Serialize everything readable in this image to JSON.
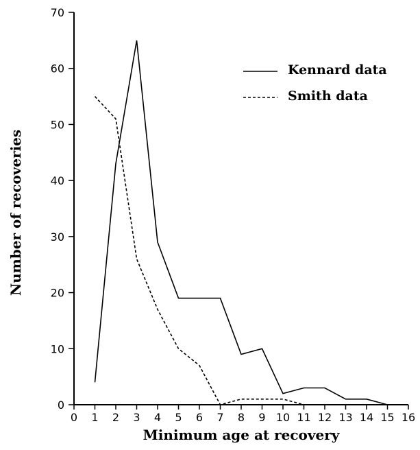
{
  "chart_data": {
    "type": "line",
    "title": "",
    "xlabel": "Minimum age at recovery",
    "ylabel": "Number of recoveries",
    "xlim": [
      0,
      16
    ],
    "ylim": [
      0,
      70
    ],
    "xticks": [
      0,
      1,
      2,
      3,
      4,
      5,
      6,
      7,
      8,
      9,
      10,
      11,
      12,
      13,
      14,
      15,
      16
    ],
    "yticks": [
      0,
      10,
      20,
      30,
      40,
      50,
      60,
      70
    ],
    "grid": false,
    "legend_position": "top-right",
    "series": [
      {
        "name": "Kennard data",
        "style": "solid",
        "x": [
          1,
          2,
          3,
          4,
          5,
          6,
          7,
          8,
          9,
          10,
          11,
          12,
          13,
          14,
          15
        ],
        "y": [
          4,
          43,
          65,
          29,
          19,
          19,
          19,
          9,
          10,
          2,
          3,
          3,
          1,
          1,
          0
        ]
      },
      {
        "name": "Smith data",
        "style": "dashed",
        "x": [
          1,
          2,
          3,
          4,
          5,
          6,
          7,
          8,
          9,
          10,
          11
        ],
        "y": [
          55,
          51,
          26,
          17,
          10,
          7,
          0,
          1,
          1,
          1,
          0
        ]
      }
    ]
  }
}
